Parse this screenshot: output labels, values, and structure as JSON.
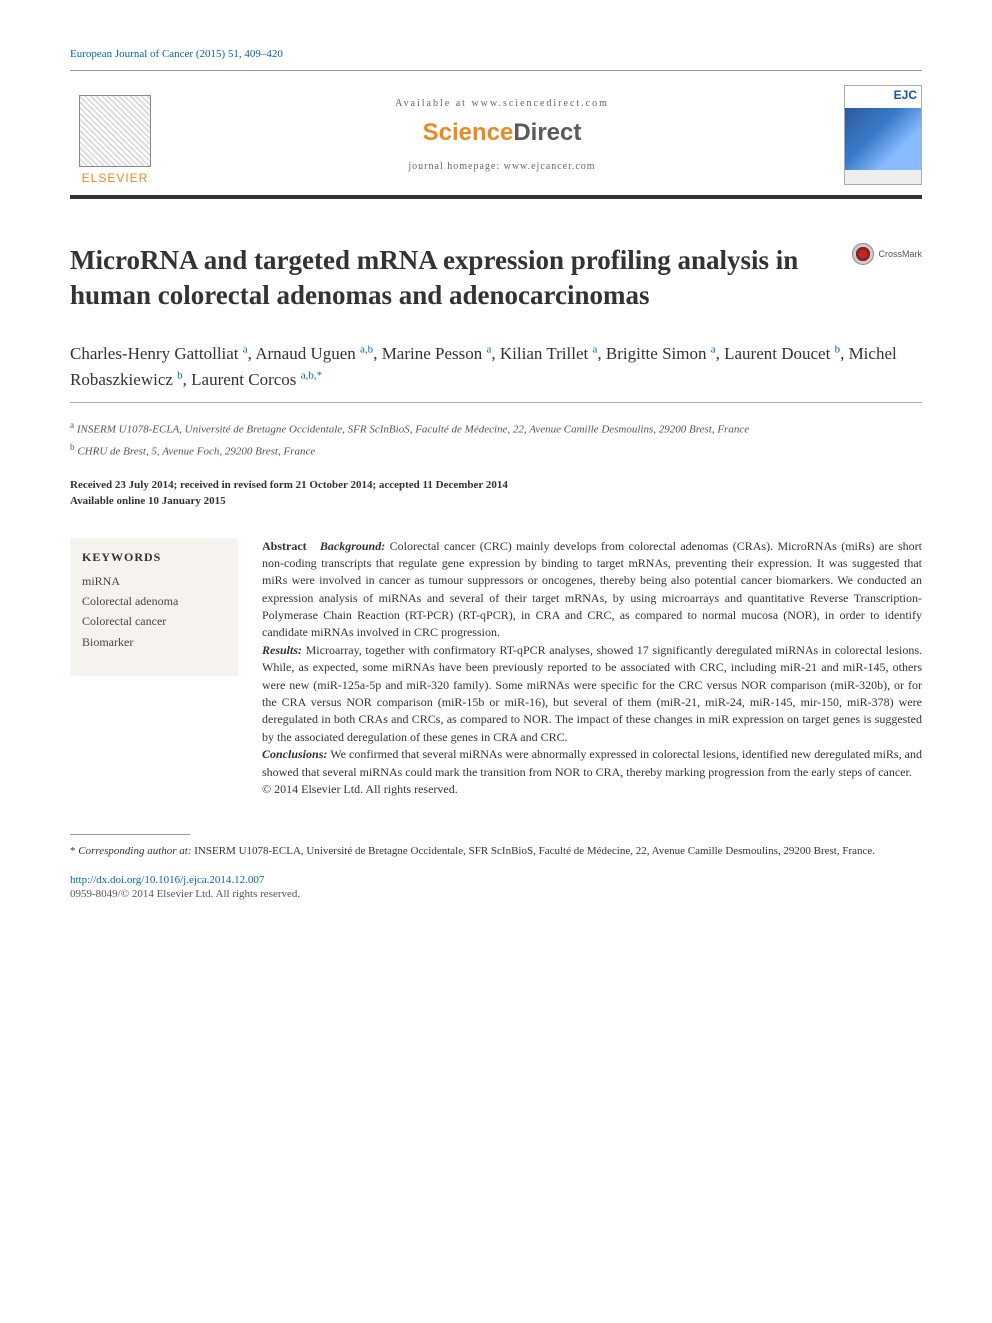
{
  "journal_ref": "European Journal of Cancer (2015) 51, 409–420",
  "header": {
    "elsevier_label": "ELSEVIER",
    "available_at": "Available at www.sciencedirect.com",
    "sd_logo_left": "Science",
    "sd_logo_right": "Direct",
    "homepage": "journal homepage: www.ejcancer.com",
    "ejc_label": "EJC"
  },
  "crossmark_label": "CrossMark",
  "title": "MicroRNA and targeted mRNA expression profiling analysis in human colorectal adenomas and adenocarcinomas",
  "authors_html": "Charles-Henry Gattolliat <sup>a</sup>, Arnaud Uguen <sup>a,b</sup>, Marine Pesson <sup>a</sup>, Kilian Trillet <sup>a</sup>, Brigitte Simon <sup>a</sup>, Laurent Doucet <sup>b</sup>, Michel Robaszkiewicz <sup>b</sup>, Laurent Corcos <sup>a,b,*</sup>",
  "affiliations": {
    "a": "INSERM U1078-ECLA, Université de Bretagne Occidentale, SFR ScInBioS, Faculté de Médecine, 22, Avenue Camille Desmoulins, 29200 Brest, France",
    "b": "CHRU de Brest, 5, Avenue Foch, 29200 Brest, France"
  },
  "dates": {
    "line1": "Received 23 July 2014; received in revised form 21 October 2014; accepted 11 December 2014",
    "line2": "Available online 10 January 2015"
  },
  "keywords": {
    "heading": "KEYWORDS",
    "items": [
      "miRNA",
      "Colorectal adenoma",
      "Colorectal cancer",
      "Biomarker"
    ]
  },
  "abstract": {
    "label": "Abstract",
    "background_label": "Background:",
    "background": " Colorectal cancer (CRC) mainly develops from colorectal adenomas (CRAs). MicroRNAs (miRs) are short non-coding transcripts that regulate gene expression by binding to target mRNAs, preventing their expression. It was suggested that miRs were involved in cancer as tumour suppressors or oncogenes, thereby being also potential cancer biomarkers. We conducted an expression analysis of miRNAs and several of their target mRNAs, by using microarrays and quantitative Reverse Transcription-Polymerase Chain Reaction (RT-PCR) (RT-qPCR), in CRA and CRC, as compared to normal mucosa (NOR), in order to identify candidate miRNAs involved in CRC progression.",
    "results_label": "Results:",
    "results": " Microarray, together with confirmatory RT-qPCR analyses, showed 17 significantly deregulated miRNAs in colorectal lesions. While, as expected, some miRNAs have been previously reported to be associated with CRC, including miR-21 and miR-145, others were new (miR-125a-5p and miR-320 family). Some miRNAs were specific for the CRC versus NOR comparison (miR-320b), or for the CRA versus NOR comparison (miR-15b or miR-16), but several of them (miR-21, miR-24, miR-145, mir-150, miR-378) were deregulated in both CRAs and CRCs, as compared to NOR. The impact of these changes in miR expression on target genes is suggested by the associated deregulation of these genes in CRA and CRC.",
    "conclusions_label": "Conclusions:",
    "conclusions": " We confirmed that several miRNAs were abnormally expressed in colorectal lesions, identified new deregulated miRs, and showed that several miRNAs could mark the transition from NOR to CRA, thereby marking progression from the early steps of cancer.",
    "copyright": "© 2014 Elsevier Ltd. All rights reserved."
  },
  "footnote": {
    "marker": "*",
    "label": "Corresponding author at:",
    "text": " INSERM U1078-ECLA, Université de Bretagne Occidentale, SFR ScInBioS, Faculté de Médecine, 22, Avenue Camille Desmoulins, 29200 Brest, France."
  },
  "doi": "http://dx.doi.org/10.1016/j.ejca.2014.12.007",
  "bottom_copyright": "0959-8049/© 2014 Elsevier Ltd. All rights reserved.",
  "colors": {
    "link": "#0066aa",
    "elsevier_orange": "#ee8822",
    "text": "#333333",
    "keyword_bg": "#f6f3ee"
  }
}
